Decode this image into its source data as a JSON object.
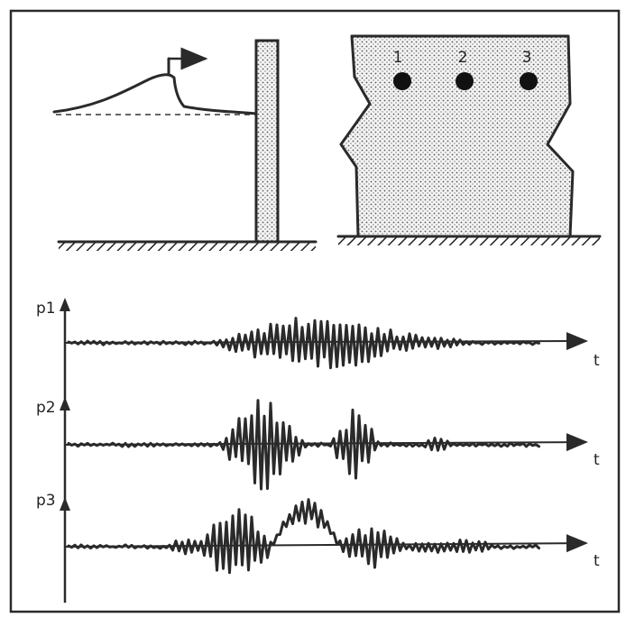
{
  "gauge_labels": [
    "1",
    "2",
    "3"
  ],
  "signals": [
    {
      "label": "p1",
      "axis_label": "t"
    },
    {
      "label": "p2",
      "axis_label": "t"
    },
    {
      "label": "p3",
      "axis_label": "t"
    }
  ]
}
